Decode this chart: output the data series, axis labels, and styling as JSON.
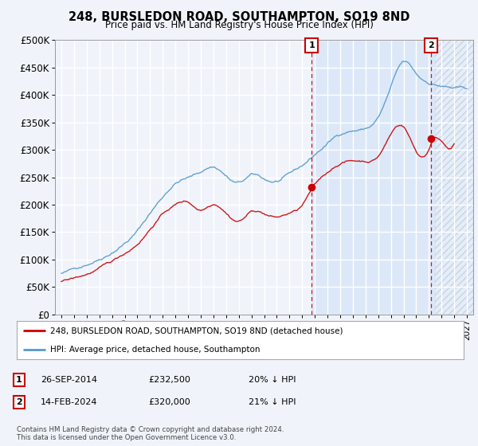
{
  "title": "248, BURSLEDON ROAD, SOUTHAMPTON, SO19 8ND",
  "subtitle": "Price paid vs. HM Land Registry's House Price Index (HPI)",
  "bg_color": "#f0f4fa",
  "plot_bg_color": "#f0f4fa",
  "shaded_bg_color": "#dce8f8",
  "grid_color": "#ffffff",
  "hpi_color": "#5599cc",
  "price_color": "#cc0000",
  "sale1_date": "26-SEP-2014",
  "sale1_price": 232500,
  "sale1_hpi_pct": "20% ↓ HPI",
  "sale2_date": "14-FEB-2024",
  "sale2_price": 320000,
  "sale2_hpi_pct": "21% ↓ HPI",
  "legend1": "248, BURSLEDON ROAD, SOUTHAMPTON, SO19 8ND (detached house)",
  "legend2": "HPI: Average price, detached house, Southampton",
  "footer": "Contains HM Land Registry data © Crown copyright and database right 2024.\nThis data is licensed under the Open Government Licence v3.0.",
  "ylim": [
    0,
    500000
  ],
  "xlim_start": 1994.5,
  "xlim_end": 2027.5,
  "sale1_x": 2014.75,
  "sale2_x": 2024.1667
}
